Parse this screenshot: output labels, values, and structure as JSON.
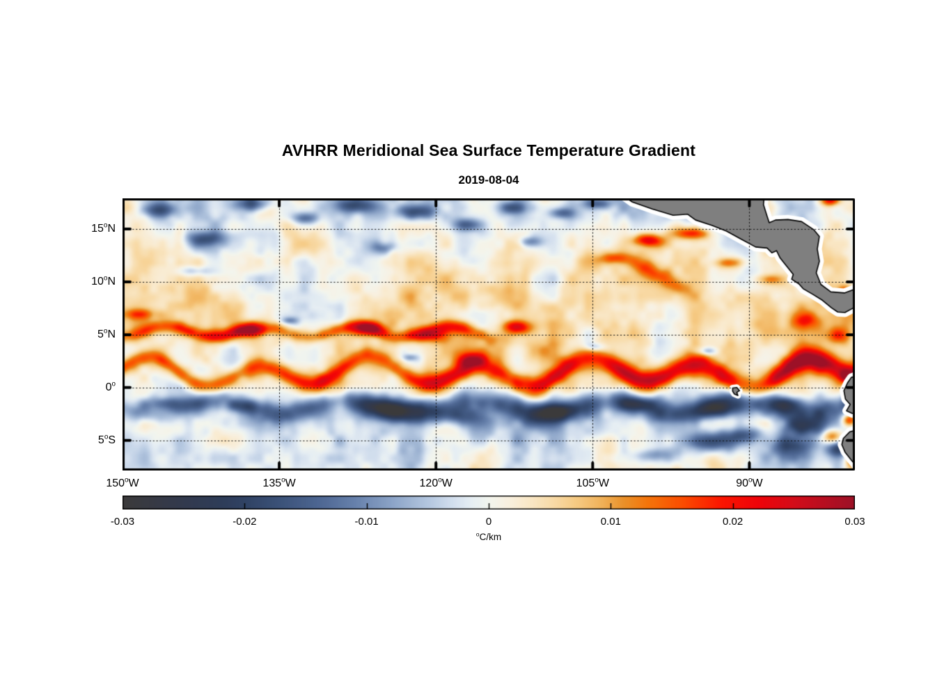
{
  "chart_data": {
    "type": "heatmap",
    "title": "AVHRR Meridional Sea Surface Temperature Gradient",
    "subtitle": "2019-08-04",
    "lon_range": [
      -150,
      -79.9
    ],
    "lat_range": [
      -7.85,
      17.9
    ],
    "x_ticks": [
      {
        "lon": -150,
        "pre": "150",
        "sup": "o",
        "post": "W"
      },
      {
        "lon": -135,
        "pre": "135",
        "sup": "o",
        "post": "W"
      },
      {
        "lon": -120,
        "pre": "120",
        "sup": "o",
        "post": "W"
      },
      {
        "lon": -105,
        "pre": "105",
        "sup": "o",
        "post": "W"
      },
      {
        "lon": -90,
        "pre": "90",
        "sup": "o",
        "post": "W"
      }
    ],
    "y_ticks": [
      {
        "lat": 15,
        "pre": "15",
        "sup": "o",
        "post": "N"
      },
      {
        "lat": 10,
        "pre": "10",
        "sup": "o",
        "post": "N"
      },
      {
        "lat": 5,
        "pre": "5",
        "sup": "o",
        "post": "N"
      },
      {
        "lat": 0,
        "pre": "0",
        "sup": "o",
        "post": ""
      },
      {
        "lat": -5,
        "pre": "5",
        "sup": "o",
        "post": "S"
      }
    ],
    "gridline_lats": [
      15,
      10,
      5,
      0,
      -5
    ],
    "gridline_lons": [
      -135,
      -120,
      -105,
      -90
    ],
    "tick_lons": [
      -150,
      -135,
      -120,
      -105,
      -90
    ],
    "tick_lats": [
      15,
      10,
      5,
      0,
      -5
    ],
    "colorbar": {
      "min": -0.03,
      "max": 0.03,
      "tick_values": [
        -0.03,
        -0.02,
        -0.01,
        0,
        0.01,
        0.02,
        0.03
      ],
      "tick_labels": [
        "-0.03",
        "-0.02",
        "-0.01",
        "0",
        "0.01",
        "0.02",
        "0.03"
      ],
      "inner_tick_values": [
        -0.02,
        -0.01,
        0,
        0.01,
        0.02
      ],
      "unit": {
        "pre": "",
        "sup": "o",
        "post": "C/km"
      },
      "stops": [
        [
          -0.03,
          "#3b3a3b"
        ],
        [
          -0.026,
          "#34394a"
        ],
        [
          -0.022,
          "#2e3c58"
        ],
        [
          -0.02,
          "#304264"
        ],
        [
          -0.017,
          "#3c537a"
        ],
        [
          -0.014,
          "#4d6692"
        ],
        [
          -0.011,
          "#6781ac"
        ],
        [
          -0.008,
          "#8ba3c7"
        ],
        [
          -0.005,
          "#b4c7e0"
        ],
        [
          -0.003,
          "#d3dfee"
        ],
        [
          -0.0015,
          "#e6eef3"
        ],
        [
          0,
          "#f3f5ee"
        ],
        [
          0.0015,
          "#f8f0e0"
        ],
        [
          0.003,
          "#f9e9cb"
        ],
        [
          0.005,
          "#f8dcab"
        ],
        [
          0.007,
          "#f6cb85"
        ],
        [
          0.009,
          "#f1b45e"
        ],
        [
          0.011,
          "#ea912a"
        ],
        [
          0.013,
          "#f4740a"
        ],
        [
          0.016,
          "#fb4a00"
        ],
        [
          0.019,
          "#fb1500"
        ],
        [
          0.022,
          "#ef0309"
        ],
        [
          0.025,
          "#d30c19"
        ],
        [
          0.028,
          "#b10f22"
        ],
        [
          0.03,
          "#9c1127"
        ]
      ]
    },
    "field": {
      "bias_pts": [
        [
          -7.85,
          -0.0005
        ],
        [
          -5,
          -0.0015
        ],
        [
          -3,
          -0.0025
        ],
        [
          -0.5,
          0.0005
        ],
        [
          1,
          0.002
        ],
        [
          4,
          0.0035
        ],
        [
          8,
          0.004
        ],
        [
          11,
          0.0025
        ],
        [
          14,
          0.0008
        ],
        [
          16,
          -0.001
        ],
        [
          17.9,
          -0.0018
        ]
      ],
      "noise": [
        {
          "scale": 3.4,
          "amp": 0.005,
          "seed": 7
        },
        {
          "scale": 1.7,
          "amp": 0.0034,
          "seed": 19
        },
        {
          "scale": 0.85,
          "amp": 0.0017,
          "seed": 31
        }
      ],
      "bands": [
        {
          "c0": 1.35,
          "meanders": [
            [
              1.05,
              10.5,
              -150
            ],
            [
              0.5,
              23,
              -155
            ]
          ],
          "width_pts": [
            [
              -150,
              0.75
            ],
            [
              -120,
              0.9
            ],
            [
              -100,
              1.05
            ],
            [
              -79,
              1.15
            ]
          ],
          "amp_pts": [
            [
              -150,
              0.013
            ],
            [
              -143,
              0.016
            ],
            [
              -138,
              0.011
            ],
            [
              -131,
              0.018
            ],
            [
              -125,
              0.013
            ],
            [
              -120,
              0.021
            ],
            [
              -114,
              0.015
            ],
            [
              -109,
              0.022
            ],
            [
              -104,
              0.018
            ],
            [
              -99,
              0.027
            ],
            [
              -94,
              0.021
            ],
            [
              -90,
              0.019
            ],
            [
              -86,
              0.029
            ],
            [
              -79,
              0.027
            ]
          ]
        },
        {
          "c0": 5.25,
          "meanders": [
            [
              0.5,
              9,
              -148
            ]
          ],
          "width_pts": [
            [
              -150,
              0.6
            ],
            [
              -79,
              0.7
            ]
          ],
          "amp_pts": [
            [
              -150,
              0.009
            ],
            [
              -144,
              0.015
            ],
            [
              -139,
              0.018
            ],
            [
              -134,
              0.01
            ],
            [
              -128,
              0.017
            ],
            [
              -122,
              0.012
            ],
            [
              -118,
              0.016
            ],
            [
              -114,
              0.006
            ],
            [
              -110,
              0
            ],
            [
              -79,
              0
            ]
          ]
        },
        {
          "c0": -1.9,
          "meanders": [
            [
              0.65,
              12.5,
              -144
            ]
          ],
          "width_pts": [
            [
              -150,
              0.9
            ],
            [
              -79,
              1.25
            ]
          ],
          "amp_pts": [
            [
              -150,
              -0.008
            ],
            [
              -140,
              -0.011
            ],
            [
              -131,
              -0.012
            ],
            [
              -124,
              -0.017
            ],
            [
              -117,
              -0.011
            ],
            [
              -110,
              -0.015
            ],
            [
              -103,
              -0.012
            ],
            [
              -96,
              -0.016
            ],
            [
              -89,
              -0.018
            ],
            [
              -83,
              -0.013
            ],
            [
              -79,
              -0.011
            ]
          ]
        }
      ],
      "blobs": [
        [
          -146.5,
          16.8,
          1.6,
          0.7,
          -0.014
        ],
        [
          -142,
          14,
          1.8,
          0.7,
          -0.013
        ],
        [
          -137.5,
          17.4,
          1.8,
          0.7,
          -0.016
        ],
        [
          -132.5,
          16,
          1.3,
          0.6,
          -0.012
        ],
        [
          -127.8,
          17.2,
          1.7,
          0.7,
          -0.017
        ],
        [
          -122,
          16.6,
          1.8,
          0.7,
          -0.015
        ],
        [
          -117,
          15.4,
          1.4,
          0.6,
          -0.012
        ],
        [
          -112.5,
          17,
          1.6,
          0.6,
          -0.014
        ],
        [
          -108,
          16.5,
          1.2,
          0.5,
          -0.012
        ],
        [
          -104.5,
          17.4,
          1.3,
          0.5,
          -0.013
        ],
        [
          -143,
          11,
          1.5,
          0.5,
          -0.009
        ],
        [
          -125,
          13.2,
          1.2,
          0.5,
          -0.008
        ],
        [
          -111,
          13.8,
          1.2,
          0.5,
          -0.01
        ],
        [
          -99,
          10.8,
          3.8,
          0.8,
          0.013,
          -28
        ],
        [
          -99.8,
          13.9,
          1.4,
          0.6,
          0.021
        ],
        [
          -95.5,
          14.6,
          1.8,
          0.55,
          0.016
        ],
        [
          -103,
          12.2,
          1.3,
          0.5,
          0.012
        ],
        [
          -92,
          11.8,
          1.3,
          0.5,
          0.014
        ],
        [
          -88,
          10.2,
          1.1,
          0.5,
          0.012
        ],
        [
          -97.5,
          17.2,
          0.9,
          0.5,
          0.019
        ],
        [
          -82.3,
          17.7,
          0.9,
          0.5,
          0.02
        ],
        [
          -84.5,
          6.3,
          1.4,
          0.8,
          0.013
        ],
        [
          -81.5,
          4.8,
          1.1,
          0.8,
          0.012
        ],
        [
          -80.8,
          9,
          0.8,
          0.6,
          0.014
        ],
        [
          -148.5,
          6.9,
          1.6,
          0.5,
          0.01
        ],
        [
          -137.6,
          5.3,
          1.5,
          0.55,
          0.017
        ],
        [
          -126.3,
          5.6,
          1.3,
          0.6,
          0.016
        ],
        [
          -120.6,
          4.9,
          1.5,
          0.7,
          0.018
        ],
        [
          -112.3,
          5.7,
          1.3,
          0.6,
          0.019
        ],
        [
          -116.5,
          2.6,
          1.5,
          0.7,
          0.016
        ],
        [
          -124,
          -2.1,
          3.2,
          1,
          -0.016
        ],
        [
          -118,
          -2.8,
          2,
          0.8,
          -0.012
        ],
        [
          -108.5,
          -2.3,
          2.2,
          0.8,
          -0.015
        ],
        [
          -101,
          -1.6,
          1.8,
          0.7,
          -0.014
        ],
        [
          -93,
          -2,
          2.2,
          0.8,
          -0.017
        ],
        [
          -86.5,
          -1.6,
          1.5,
          0.7,
          -0.014
        ],
        [
          -93.5,
          -5.2,
          2.6,
          1,
          -0.019
        ],
        [
          -85.8,
          -5.5,
          2.2,
          1,
          -0.017
        ],
        [
          -90.5,
          -4.6,
          1.8,
          0.8,
          -0.015
        ],
        [
          -99,
          -6.5,
          2,
          0.7,
          -0.011
        ],
        [
          -81.5,
          -5.8,
          1,
          0.9,
          -0.014
        ],
        [
          -85,
          -3.8,
          1.8,
          0.8,
          -0.016
        ],
        [
          -146,
          -1.5,
          1.6,
          0.6,
          -0.01
        ],
        [
          -138.5,
          -1.8,
          1.6,
          0.6,
          -0.011
        ],
        [
          -80.4,
          -3.1,
          0.7,
          0.6,
          0.022
        ],
        [
          -82,
          -4.8,
          1,
          0.7,
          0.02
        ],
        [
          -80.2,
          -7,
          0.6,
          0.8,
          0.014
        ],
        [
          -80.5,
          1,
          0.7,
          0.4,
          0.012
        ],
        [
          -134,
          6.3,
          0.8,
          0.35,
          -0.009
        ],
        [
          -94,
          3.4,
          0.9,
          0.4,
          -0.012
        ],
        [
          -104.8,
          3.8,
          0.9,
          0.4,
          -0.009
        ],
        [
          -122.5,
          2.8,
          0.8,
          0.35,
          -0.008
        ]
      ]
    },
    "land": {
      "fill": "#7f7f7f",
      "outline": "#000000",
      "halo": "#ffffff",
      "polygons": {
        "central_america": [
          [
            -102.5,
            18.45
          ],
          [
            -101.2,
            17.55
          ],
          [
            -99.3,
            16.9
          ],
          [
            -97.3,
            16.3
          ],
          [
            -95.9,
            16.4
          ],
          [
            -95.15,
            15.85
          ],
          [
            -93.6,
            15.35
          ],
          [
            -92.2,
            14.8
          ],
          [
            -90.8,
            14.05
          ],
          [
            -89.4,
            13.3
          ],
          [
            -88.3,
            13.2
          ],
          [
            -87.85,
            12.75
          ],
          [
            -87.4,
            12.95
          ],
          [
            -87.05,
            12.25
          ],
          [
            -86.4,
            11.45
          ],
          [
            -85.8,
            10.7
          ],
          [
            -85.95,
            10.25
          ],
          [
            -85.25,
            9.8
          ],
          [
            -84.85,
            9.35
          ],
          [
            -83.9,
            8.8
          ],
          [
            -83,
            8.25
          ],
          [
            -82.15,
            7.55
          ],
          [
            -81.55,
            7.15
          ],
          [
            -80.85,
            7.1
          ],
          [
            -80.1,
            7.5
          ],
          [
            -79.4,
            7.65
          ],
          [
            -79.4,
            9.5
          ],
          [
            -80.9,
            8.95
          ],
          [
            -82.2,
            9.05
          ],
          [
            -83.15,
            9.75
          ],
          [
            -83.6,
            10.85
          ],
          [
            -83.3,
            11.95
          ],
          [
            -83.5,
            13.1
          ],
          [
            -83.3,
            14.3
          ],
          [
            -83.85,
            14.95
          ],
          [
            -85,
            15.7
          ],
          [
            -86.3,
            15.9
          ],
          [
            -87.5,
            15.85
          ],
          [
            -88.1,
            15.6
          ],
          [
            -88.35,
            16.35
          ],
          [
            -88.65,
            17.3
          ],
          [
            -88.55,
            18.45
          ]
        ],
        "ecuador": [
          [
            -79.4,
            1.25
          ],
          [
            -80.25,
            0.95
          ],
          [
            -80.6,
            0.45
          ],
          [
            -80.95,
            -0.3
          ],
          [
            -80.8,
            -1.1
          ],
          [
            -80.35,
            -1.6
          ],
          [
            -80.7,
            -2.2
          ],
          [
            -80.15,
            -2.45
          ],
          [
            -79.4,
            -2.4
          ]
        ],
        "peru": [
          [
            -79.4,
            -3.9
          ],
          [
            -80.4,
            -4.2
          ],
          [
            -81,
            -4.8
          ],
          [
            -81.15,
            -5.4
          ],
          [
            -80.85,
            -6.1
          ],
          [
            -80.3,
            -6.8
          ],
          [
            -79.8,
            -7.4
          ],
          [
            -79.4,
            -8.3
          ]
        ],
        "galapagos": [
          [
            -91.6,
            -0.05
          ],
          [
            -91.2,
            0
          ],
          [
            -90.95,
            -0.3
          ],
          [
            -91.2,
            -0.45
          ],
          [
            -91.1,
            -0.75
          ],
          [
            -91.45,
            -0.6
          ],
          [
            -91.6,
            -0.35
          ]
        ]
      }
    }
  }
}
